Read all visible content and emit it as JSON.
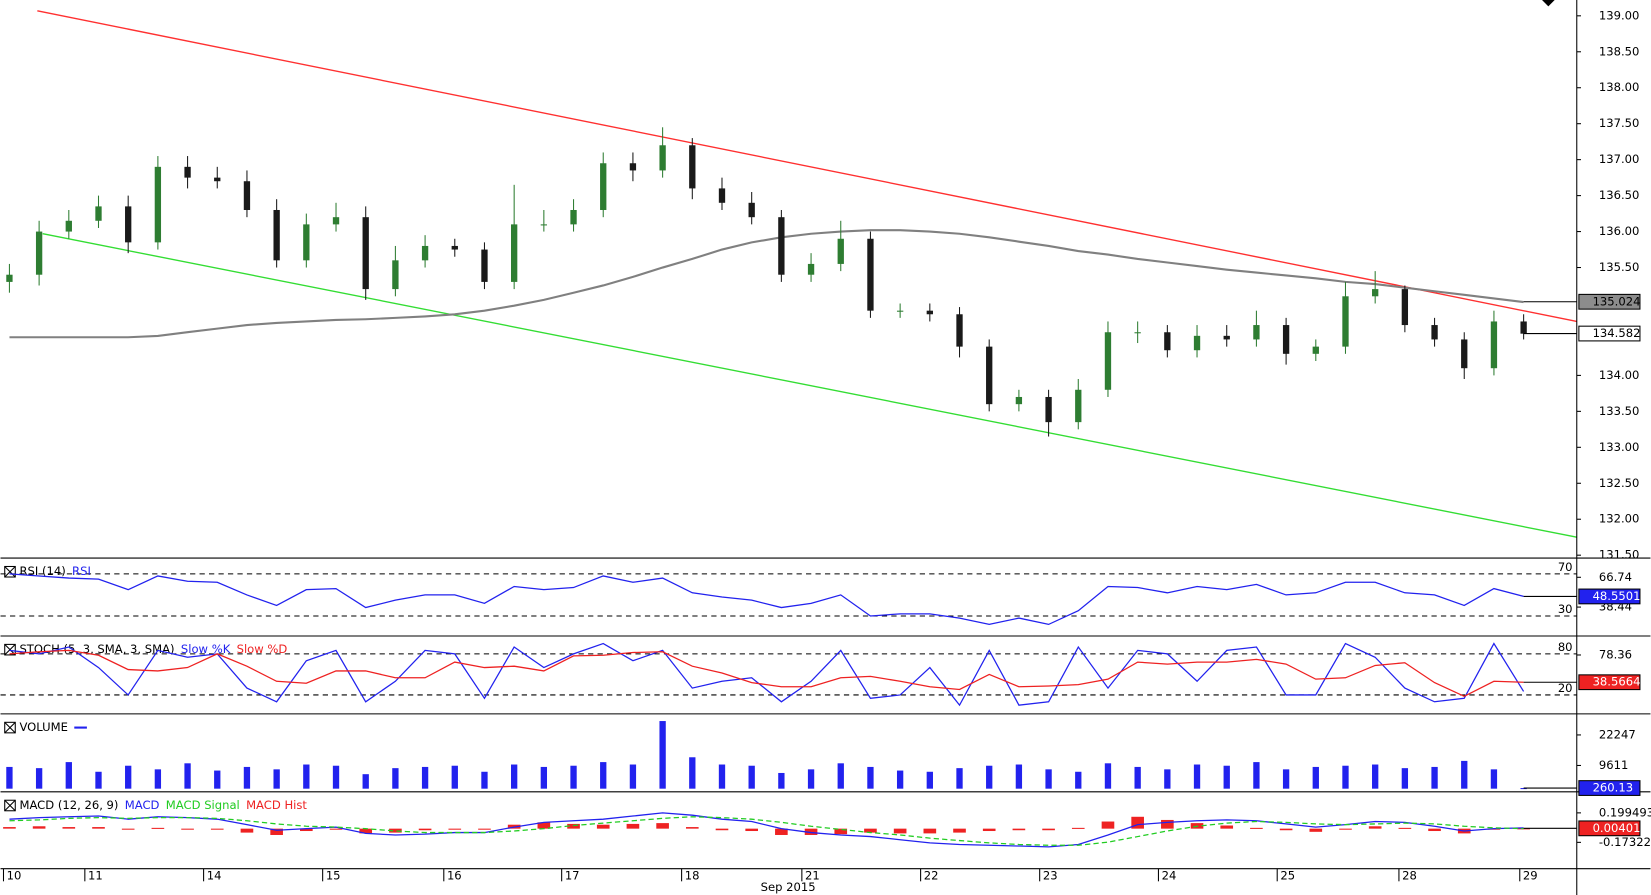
{
  "chart_data": [
    {
      "type": "candlestick",
      "xlim": [
        0,
        53.09
      ],
      "xticks": [
        {
          "value": 0.1,
          "label": "10"
        },
        {
          "value": 2.84,
          "label": "11"
        },
        {
          "value": 6.84,
          "label": "14"
        },
        {
          "value": 10.85,
          "label": "15"
        },
        {
          "value": 14.93,
          "label": "16"
        },
        {
          "value": 18.9,
          "label": "17"
        },
        {
          "value": 22.94,
          "label": "18"
        },
        {
          "value": 26.99,
          "label": "21"
        },
        {
          "value": 30.99,
          "label": "22"
        },
        {
          "value": 35.0,
          "label": "23"
        },
        {
          "value": 39.0,
          "label": "24"
        },
        {
          "value": 43.0,
          "label": "25"
        },
        {
          "value": 47.1,
          "label": "28"
        },
        {
          "value": 51.17,
          "label": "29"
        }
      ],
      "xlabel": "Sep 2015",
      "ylim": [
        131.46,
        139.22
      ],
      "yticks": [
        {
          "value": 139,
          "label": "139.00"
        },
        {
          "value": 138.5,
          "label": "138.50"
        },
        {
          "value": 138,
          "label": "138.00"
        },
        {
          "value": 137.5,
          "label": "137.50"
        },
        {
          "value": 137,
          "label": "137.00"
        },
        {
          "value": 136.5,
          "label": "136.50"
        },
        {
          "value": 136,
          "label": "136.00"
        },
        {
          "value": 135.5,
          "label": "135.50"
        },
        {
          "value": 134,
          "label": "134.00"
        },
        {
          "value": 133.5,
          "label": "133.50"
        },
        {
          "value": 133,
          "label": "133.00"
        },
        {
          "value": 132.5,
          "label": "132.50"
        },
        {
          "value": 132,
          "label": "132.00"
        },
        {
          "value": 131.5,
          "label": "131.50"
        }
      ],
      "up_color": "#2e7d32",
      "down_color": "#1a1a1a",
      "open": [
        135.3,
        135.4,
        136.0,
        136.15,
        136.35,
        135.85,
        136.9,
        136.75,
        136.7,
        136.3,
        135.6,
        136.1,
        136.2,
        135.2,
        135.6,
        135.8,
        135.75,
        135.3,
        136.1,
        136.1,
        136.3,
        136.95,
        136.85,
        137.2,
        136.6,
        136.4,
        136.2,
        135.4,
        135.55,
        135.9,
        134.9,
        134.9,
        134.85,
        134.4,
        133.6,
        133.7,
        133.35,
        133.8,
        134.6,
        134.6,
        134.35,
        134.55,
        134.5,
        134.7,
        134.3,
        134.4,
        135.1,
        135.2,
        134.7,
        134.5,
        134.1,
        134.75
      ],
      "high": [
        135.55,
        136.15,
        136.3,
        136.5,
        136.5,
        137.05,
        137.05,
        136.9,
        136.85,
        136.45,
        136.25,
        136.4,
        136.35,
        135.8,
        135.95,
        135.9,
        135.85,
        136.65,
        136.3,
        136.45,
        137.1,
        137.1,
        137.45,
        137.3,
        136.75,
        136.55,
        136.3,
        135.7,
        136.15,
        136.0,
        135.0,
        135.0,
        134.95,
        134.5,
        133.8,
        133.8,
        133.95,
        134.75,
        134.75,
        134.7,
        134.7,
        134.7,
        134.9,
        134.8,
        134.5,
        135.3,
        135.45,
        135.25,
        134.8,
        134.6,
        134.9,
        134.85
      ],
      "low": [
        135.15,
        135.25,
        135.9,
        136.05,
        135.7,
        135.75,
        136.6,
        136.6,
        136.2,
        135.5,
        135.5,
        136.0,
        135.05,
        135.1,
        135.5,
        135.65,
        135.2,
        135.2,
        136.0,
        136.0,
        136.2,
        136.7,
        136.75,
        136.45,
        136.3,
        136.1,
        135.3,
        135.3,
        135.45,
        134.8,
        134.8,
        134.75,
        134.25,
        133.5,
        133.5,
        133.15,
        133.25,
        133.7,
        134.45,
        134.25,
        134.25,
        134.4,
        134.4,
        134.15,
        134.2,
        134.3,
        135.0,
        134.6,
        134.4,
        133.95,
        134.0,
        134.5
      ],
      "close": [
        135.4,
        136.0,
        136.15,
        136.35,
        135.85,
        136.9,
        136.75,
        136.7,
        136.3,
        135.6,
        136.1,
        136.2,
        135.2,
        135.6,
        135.8,
        135.75,
        135.3,
        136.1,
        136.1,
        136.3,
        136.95,
        136.85,
        137.2,
        136.6,
        136.4,
        136.2,
        135.4,
        135.55,
        135.9,
        134.9,
        134.9,
        134.85,
        134.4,
        133.6,
        133.7,
        133.35,
        133.8,
        134.6,
        134.6,
        134.35,
        134.55,
        134.5,
        134.7,
        134.3,
        134.4,
        135.1,
        135.2,
        134.7,
        134.5,
        134.1,
        134.75,
        134.58
      ],
      "ma": {
        "color": "#808080",
        "values": [
          134.53,
          134.53,
          134.53,
          134.53,
          134.53,
          134.55,
          134.6,
          134.65,
          134.7,
          134.73,
          134.75,
          134.77,
          134.78,
          134.8,
          134.82,
          134.85,
          134.9,
          134.97,
          135.05,
          135.15,
          135.25,
          135.37,
          135.5,
          135.62,
          135.75,
          135.85,
          135.92,
          135.97,
          136.0,
          136.02,
          136.02,
          136.0,
          135.97,
          135.92,
          135.86,
          135.8,
          135.73,
          135.68,
          135.62,
          135.57,
          135.52,
          135.47,
          135.43,
          135.39,
          135.35,
          135.3,
          135.27,
          135.22,
          135.17,
          135.12,
          135.07,
          135.02
        ]
      },
      "trendlines": [
        {
          "color": "#ff3030",
          "x": [
            1.24,
            53.09
          ],
          "y": [
            139.07,
            134.75
          ]
        },
        {
          "color": "#33dd33",
          "x": [
            1.42,
            53.09
          ],
          "y": [
            135.97,
            131.75
          ]
        }
      ],
      "markers": [
        {
          "value": 135.024,
          "color": "#8c8c8c",
          "text_color": "#000000"
        },
        {
          "value": 134.582,
          "color": "#ffffff",
          "text_color": "#000000"
        }
      ]
    },
    {
      "type": "line",
      "title": "RSI (14)",
      "ylim": [
        11,
        84
      ],
      "yticks": [
        66.74,
        38.44
      ],
      "levels": [
        70,
        30
      ],
      "series": [
        {
          "name": "RSI",
          "color": "#2222ee",
          "values": [
            70,
            68,
            66,
            65,
            55,
            68,
            63,
            62,
            50,
            40,
            55,
            56,
            38,
            45,
            50,
            50,
            42,
            58,
            55,
            57,
            68,
            62,
            66,
            52,
            48,
            45,
            38,
            42,
            50,
            30,
            32,
            32,
            28,
            22,
            28,
            22,
            35,
            58,
            57,
            52,
            58,
            55,
            60,
            50,
            52,
            62,
            62,
            52,
            50,
            40,
            56,
            48.55012
          ]
        }
      ],
      "markers": [
        {
          "value": 48.55012,
          "color": "#2222ee",
          "text_color": "#ffffff"
        }
      ]
    },
    {
      "type": "line",
      "title": "STOCH (5, 3, SMA, 3, SMA)",
      "ylim": [
        -7.7,
        104.6
      ],
      "yticks": [
        78.36
      ],
      "levels": [
        80,
        20
      ],
      "series": [
        {
          "name": "Slow %K",
          "color": "#2222ee",
          "values": [
            85,
            80,
            90,
            60,
            20,
            85,
            75,
            80,
            30,
            10,
            70,
            85,
            10,
            40,
            85,
            80,
            15,
            90,
            60,
            80,
            95,
            70,
            85,
            30,
            40,
            45,
            10,
            40,
            85,
            15,
            20,
            60,
            5,
            85,
            5,
            10,
            90,
            30,
            85,
            80,
            40,
            85,
            90,
            20,
            20,
            95,
            75,
            30,
            10,
            15,
            95,
            25
          ]
        },
        {
          "name": "Slow %D",
          "color": "#ee2222",
          "values": [
            80,
            83,
            85,
            78,
            57,
            55,
            60,
            80,
            62,
            40,
            37,
            55,
            55,
            45,
            45,
            68,
            60,
            62,
            55,
            77,
            78,
            82,
            83,
            62,
            52,
            38,
            32,
            32,
            45,
            47,
            40,
            32,
            28,
            50,
            32,
            33,
            35,
            43,
            68,
            65,
            68,
            68,
            72,
            65,
            43,
            45,
            63,
            67,
            38,
            18,
            40,
            38.56642
          ]
        }
      ],
      "markers": [
        {
          "value": 38.56642,
          "color": "#ee2222",
          "text_color": "#ffffff"
        }
      ]
    },
    {
      "type": "bar",
      "title": "VOLUME",
      "ylim": [
        -1300,
        30525
      ],
      "yticks": [
        22247,
        9611
      ],
      "series": [
        {
          "name": "",
          "color": "#2222ee",
          "values": [
            9000,
            8500,
            11000,
            7000,
            9500,
            8000,
            10500,
            7500,
            9000,
            8000,
            10000,
            9500,
            6000,
            8500,
            9000,
            9500,
            7000,
            10000,
            9000,
            9500,
            11000,
            10000,
            28000,
            13000,
            10000,
            9500,
            6500,
            8000,
            10500,
            9000,
            7500,
            7000,
            8500,
            9500,
            10000,
            8000,
            7000,
            10500,
            9000,
            8000,
            10000,
            9500,
            11000,
            8000,
            9000,
            9500,
            10000,
            8500,
            9000,
            11500,
            8000,
            260.13
          ]
        }
      ],
      "markers": [
        {
          "value": 260.13,
          "color": "#2222ee",
          "text_color": "#ffffff"
        }
      ]
    },
    {
      "type": "macd",
      "title": "MACD (12, 26, 9)",
      "ylim": [
        -0.506,
        0.4524
      ],
      "yticks": [
        0.1994937,
        -0.1732202
      ],
      "series": [
        {
          "name": "MACD",
          "color": "#2222ee",
          "values": [
            0.12,
            0.14,
            0.15,
            0.16,
            0.12,
            0.15,
            0.14,
            0.12,
            0.05,
            -0.02,
            0.0,
            0.02,
            -0.06,
            -0.08,
            -0.07,
            -0.05,
            -0.05,
            0.02,
            0.08,
            0.1,
            0.12,
            0.16,
            0.2,
            0.17,
            0.12,
            0.09,
            0.0,
            -0.05,
            -0.08,
            -0.1,
            -0.14,
            -0.18,
            -0.2,
            -0.21,
            -0.22,
            -0.23,
            -0.2,
            -0.08,
            0.05,
            0.08,
            0.1,
            0.11,
            0.1,
            0.06,
            0.02,
            0.05,
            0.09,
            0.08,
            0.03,
            -0.03,
            0.0,
            0.01
          ]
        },
        {
          "name": "MACD Signal",
          "color": "#22cc22",
          "values": [
            0.1,
            0.11,
            0.13,
            0.14,
            0.13,
            0.14,
            0.14,
            0.13,
            0.1,
            0.06,
            0.03,
            0.02,
            0.0,
            -0.03,
            -0.05,
            -0.05,
            -0.05,
            -0.03,
            0.0,
            0.04,
            0.07,
            0.1,
            0.13,
            0.15,
            0.14,
            0.12,
            0.08,
            0.03,
            -0.01,
            -0.05,
            -0.08,
            -0.12,
            -0.15,
            -0.18,
            -0.2,
            -0.21,
            -0.21,
            -0.17,
            -0.1,
            -0.03,
            0.03,
            0.07,
            0.09,
            0.08,
            0.06,
            0.05,
            0.06,
            0.07,
            0.06,
            0.03,
            0.01,
            0.0
          ]
        },
        {
          "name": "MACD Hist",
          "color": "#ee2222",
          "values": [
            0.02,
            0.03,
            0.02,
            0.02,
            -0.01,
            0.01,
            0,
            -0.01,
            -0.05,
            -0.08,
            -0.03,
            0,
            -0.06,
            -0.05,
            -0.02,
            0,
            0,
            0.05,
            0.08,
            0.06,
            0.05,
            0.06,
            0.07,
            0.02,
            -0.02,
            -0.03,
            -0.08,
            -0.08,
            -0.07,
            -0.05,
            -0.06,
            -0.06,
            -0.05,
            -0.03,
            -0.02,
            -0.02,
            0.01,
            0.09,
            0.15,
            0.11,
            0.07,
            0.04,
            0.01,
            -0.02,
            -0.04,
            0,
            0.03,
            0.01,
            -0.03,
            -0.06,
            -0.01,
            0.0040182
          ]
        }
      ],
      "markers": [
        {
          "value": 0.0040182,
          "color": "#ee2222",
          "text_color": "#ffffff"
        }
      ]
    }
  ]
}
